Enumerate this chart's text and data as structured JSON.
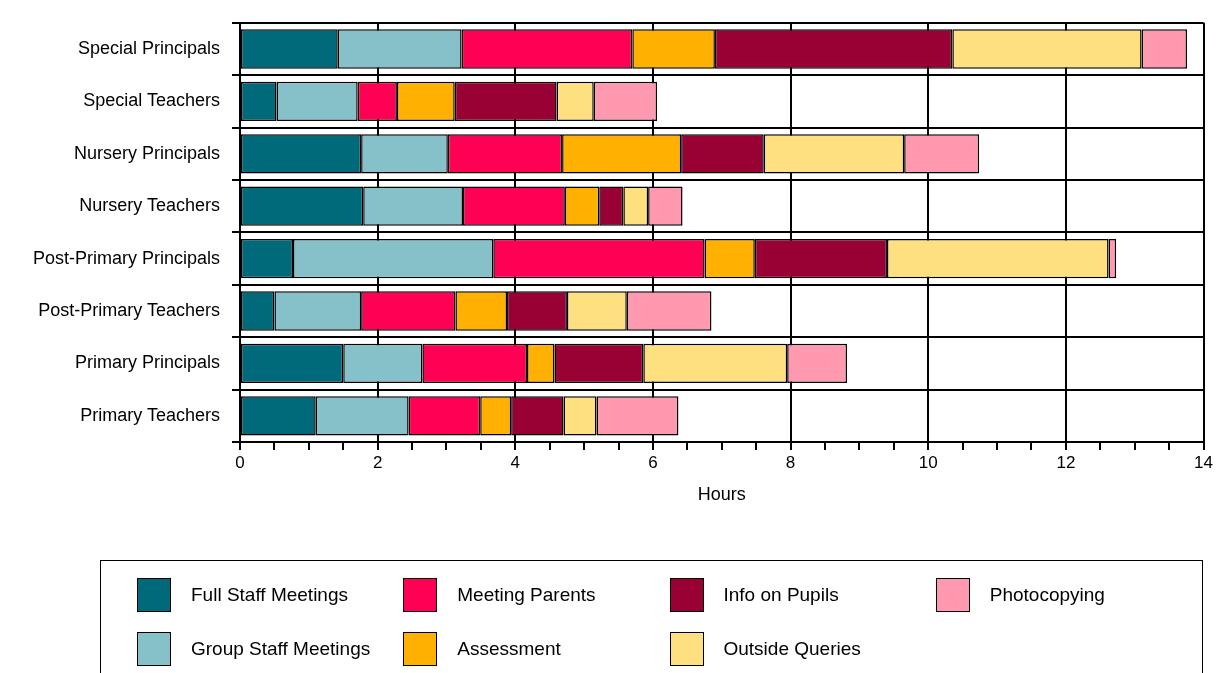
{
  "chart_data": {
    "type": "bar",
    "orientation": "horizontal",
    "stacked": true,
    "xlabel": "Hours",
    "categories": [
      "Special Principals",
      "Special Teachers",
      "Nursery Principals",
      "Nursery Teachers",
      "Post-Primary Principals",
      "Post-Primary Teachers",
      "Primary Principals",
      "Primary Teachers"
    ],
    "series": [
      {
        "name": "Full Staff Meetings",
        "color": "#006a7a",
        "values": [
          1.42,
          0.53,
          1.76,
          1.79,
          0.77,
          0.5,
          1.5,
          1.1
        ]
      },
      {
        "name": "Group Staff Meetings",
        "color": "#86c0c8",
        "values": [
          1.8,
          1.18,
          1.26,
          1.45,
          2.91,
          1.26,
          1.15,
          1.35
        ]
      },
      {
        "name": "Meeting Parents",
        "color": "#ff0055",
        "values": [
          2.48,
          0.57,
          1.66,
          1.48,
          3.07,
          1.37,
          1.52,
          1.04
        ]
      },
      {
        "name": "Assessment",
        "color": "#ffb000",
        "values": [
          1.2,
          0.84,
          1.73,
          0.5,
          0.73,
          0.75,
          0.4,
          0.45
        ]
      },
      {
        "name": "Info on Pupils",
        "color": "#990033",
        "values": [
          3.45,
          1.48,
          1.2,
          0.35,
          1.92,
          0.87,
          1.29,
          0.76
        ]
      },
      {
        "name": "Outside Queries",
        "color": "#ffe080",
        "values": [
          2.75,
          0.54,
          2.04,
          0.36,
          3.22,
          0.87,
          2.09,
          0.48
        ]
      },
      {
        "name": "Photocopying",
        "color": "#ff99b0",
        "values": [
          0.66,
          0.92,
          1.09,
          0.5,
          0.11,
          1.23,
          0.87,
          1.19
        ]
      }
    ],
    "xlim": [
      0,
      14
    ],
    "xticks": [
      0,
      {
        "value": 0.5,
        "label": null
      },
      {
        "value": 1,
        "label": null
      },
      {
        "value": 1.5,
        "label": null
      },
      2,
      {
        "value": 2.5,
        "label": null
      },
      {
        "value": 3,
        "label": null
      },
      {
        "value": 3.5,
        "label": null
      },
      4,
      {
        "value": 4.5,
        "label": null
      },
      {
        "value": 5,
        "label": null
      },
      {
        "value": 5.5,
        "label": null
      },
      6,
      {
        "value": 6.5,
        "label": null
      },
      {
        "value": 7,
        "label": null
      },
      {
        "value": 7.5,
        "label": null
      },
      8,
      {
        "value": 8.5,
        "label": null
      },
      {
        "value": 9,
        "label": null
      },
      {
        "value": 9.5,
        "label": null
      },
      10,
      {
        "value": 10.5,
        "label": null
      },
      {
        "value": 11,
        "label": null
      },
      {
        "value": 11.5,
        "label": null
      },
      12,
      {
        "value": 12.5,
        "label": null
      },
      {
        "value": 13,
        "label": null
      },
      {
        "value": 13.5,
        "label": null
      },
      14
    ],
    "grid": true,
    "legend": "bottom"
  }
}
